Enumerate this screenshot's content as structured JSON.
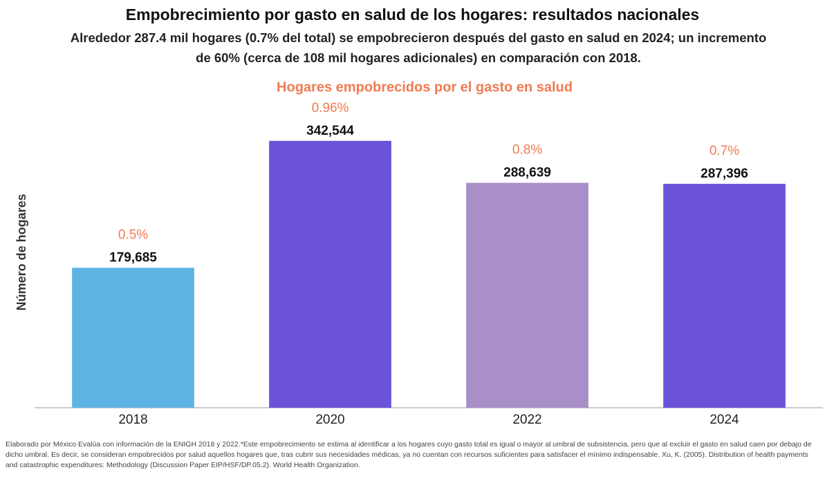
{
  "chart_data": {
    "type": "bar",
    "title": "Empobrecimiento por gasto en salud de los hogares: resultados nacionales",
    "subtitle": "Alrededor 287.4 mil hogares (0.7% del total) se empobrecieron después del gasto en salud en 2024; un incremento de 60% (cerca de 108 mil hogares adicionales) en comparación con 2018.",
    "chart_title": "Hogares empobrecidos por el gasto en salud",
    "ylabel": "Número de hogares",
    "categories": [
      "2018",
      "2020",
      "2022",
      "2024"
    ],
    "values": [
      179685,
      342544,
      288639,
      287396
    ],
    "value_labels": [
      "179,685",
      "342,544",
      "288,639",
      "287,396"
    ],
    "percent": [
      0.5,
      0.96,
      0.8,
      0.7
    ],
    "percent_labels": [
      "0.5%",
      "0.96%",
      "0.8%",
      "0.7%"
    ],
    "colors": [
      "#5db4e4",
      "#6b52d9",
      "#a88fc7",
      "#6b52d9"
    ],
    "ylim": [
      0,
      400000
    ],
    "footnote": "Elaborado por México Evalúa con información de la ENIGH 2018 y 2022.*Este empobrecimiento se estima al identificar a los hogares cuyo gasto total es igual o mayor al umbral de subsistencia, pero que al excluir el gasto en salud caen por debajo de dicho umbral. Es decir, se consideran empobrecidos por salud aquellos hogares que, tras cubrir sus necesidades médicas, ya no cuentan con recursos suficientes para satisfacer el mínimo indispensable. Xu, K. (2005). Distribution of health payments and catastrophic expenditures: Methodology (Discussion Paper EIP/HSF/DP.05.2). World Health Organization."
  }
}
